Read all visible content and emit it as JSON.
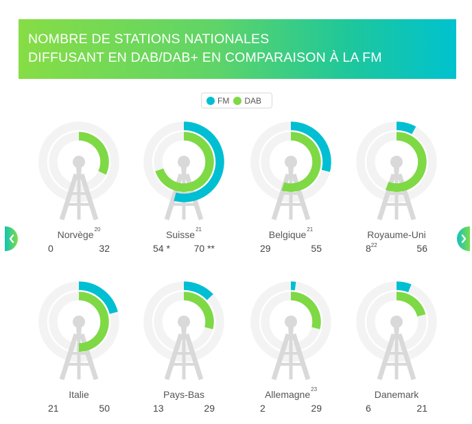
{
  "header": {
    "title_line1": "NOMBRE DE STATIONS NATIONALES",
    "title_line2": "DIFFUSANT EN DAB/DAB+ EN COMPARAISON À LA FM"
  },
  "legend": {
    "fm_label": "FM",
    "dab_label": "DAB",
    "fm_color": "#00bfd2",
    "dab_color": "#7ed945"
  },
  "nav": {
    "prev_icon": "chevron-left-icon",
    "next_icon": "chevron-right-icon"
  },
  "colors": {
    "fm": "#00bfd2",
    "dab": "#7ed945",
    "track": "#f3f3f3",
    "tower": "#d9d9d9"
  },
  "countries": [
    {
      "name": "Norvège",
      "note": "20",
      "fm": 0,
      "fm_label": "0",
      "fm_note": "",
      "dab": 32,
      "dab_label": "32"
    },
    {
      "name": "Suisse",
      "note": "21",
      "fm": 54,
      "fm_label": "54 *",
      "fm_note": "",
      "dab": 70,
      "dab_label": "70 **"
    },
    {
      "name": "Belgique",
      "note": "21",
      "fm": 29,
      "fm_label": "29",
      "fm_note": "",
      "dab": 55,
      "dab_label": "55"
    },
    {
      "name": "Royaume-Uni",
      "note": "",
      "fm": 8,
      "fm_label": "8",
      "fm_note": "22",
      "dab": 56,
      "dab_label": "56"
    },
    {
      "name": "Italie",
      "note": "",
      "fm": 21,
      "fm_label": "21",
      "fm_note": "",
      "dab": 50,
      "dab_label": "50"
    },
    {
      "name": "Pays-Bas",
      "note": "",
      "fm": 13,
      "fm_label": "13",
      "fm_note": "",
      "dab": 29,
      "dab_label": "29"
    },
    {
      "name": "Allemagne",
      "note": "23",
      "fm": 2,
      "fm_label": "2",
      "fm_note": "",
      "dab": 29,
      "dab_label": "29"
    },
    {
      "name": "Danemark",
      "note": "",
      "fm": 6,
      "fm_label": "6",
      "fm_note": "",
      "dab": 21,
      "dab_label": "21"
    }
  ],
  "chart_data": {
    "type": "radial-bar",
    "title": "NOMBRE DE STATIONS NATIONALES DIFFUSANT EN DAB/DAB+ EN COMPARAISON À LA FM",
    "categories": [
      "Norvège",
      "Suisse",
      "Belgique",
      "Royaume-Uni",
      "Italie",
      "Pays-Bas",
      "Allemagne",
      "Danemark"
    ],
    "series": [
      {
        "name": "FM",
        "color": "#00bfd2",
        "values": [
          0,
          54,
          29,
          8,
          21,
          13,
          2,
          6
        ]
      },
      {
        "name": "DAB",
        "color": "#7ed945",
        "values": [
          32,
          70,
          55,
          56,
          50,
          29,
          29,
          21
        ]
      }
    ],
    "footnotes": {
      "Norvège": "20",
      "Suisse": "21",
      "Belgique": "21",
      "Royaume-Uni (FM)": "22",
      "Allemagne": "23"
    },
    "annotations": {
      "Suisse FM": "*",
      "Suisse DAB": "**"
    },
    "scale": "full circle = 100 stations",
    "legend_position": "top-center"
  }
}
